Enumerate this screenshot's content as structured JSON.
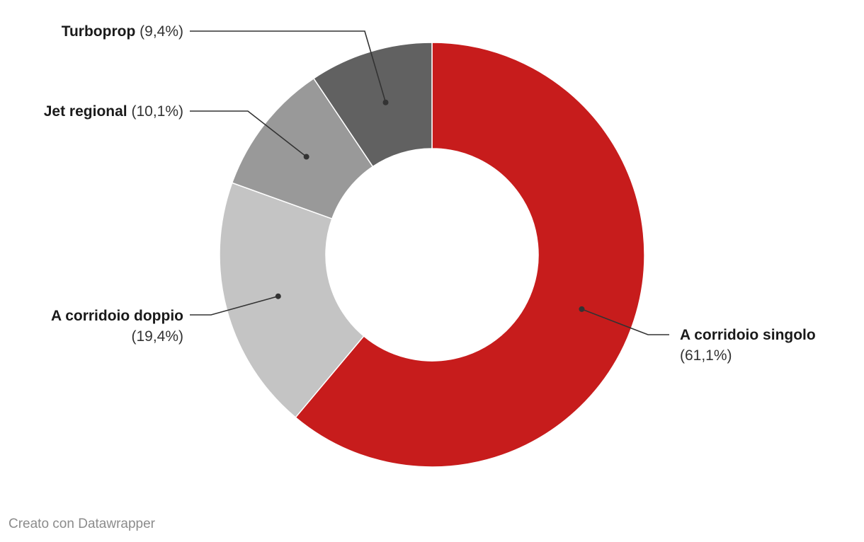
{
  "chart_data": {
    "type": "pie",
    "donut": true,
    "categories": [
      "A corridoio singolo",
      "A corridoio doppio",
      "Jet regional",
      "Turboprop"
    ],
    "values": [
      61.1,
      19.4,
      10.1,
      9.4
    ],
    "value_labels": [
      "(61,1%)",
      "(19,4%)",
      "(10,1%)",
      "(9,4%)"
    ],
    "colors": [
      "#c71c1c",
      "#c4c4c4",
      "#999999",
      "#616161"
    ],
    "start": "12 o'clock",
    "direction": "clockwise"
  },
  "footer": {
    "credit": "Creato con Datawrapper"
  }
}
